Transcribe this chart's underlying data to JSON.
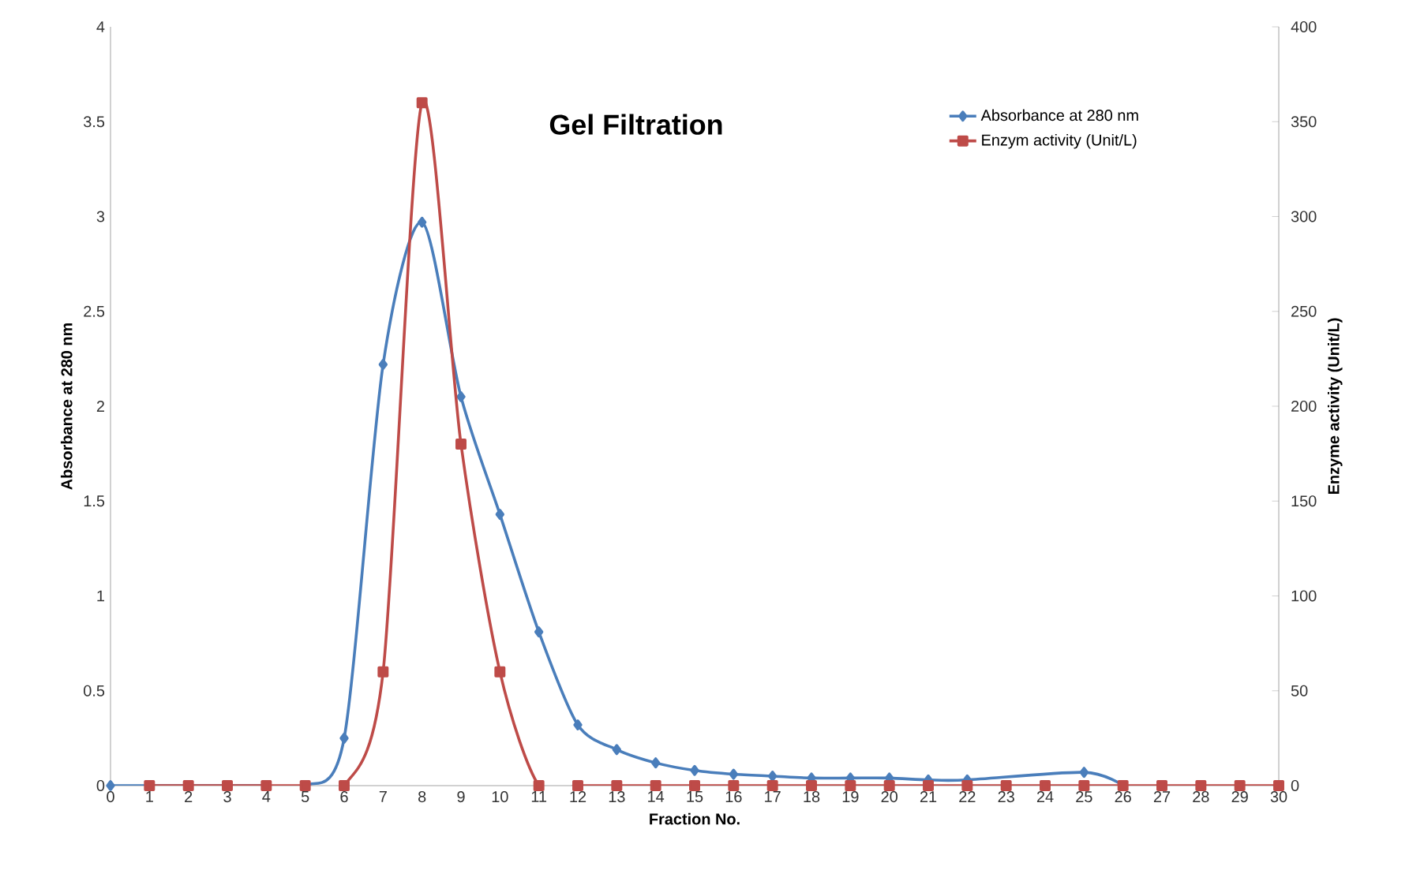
{
  "chart_data": {
    "type": "line",
    "title": "Gel Filtration",
    "xlabel": "Fraction No.",
    "ylabel": "Absorbance  at 280 nm",
    "y2label": "Enzyme activity (Unit/L)",
    "xlim": [
      0,
      30
    ],
    "xticks": [
      0,
      1,
      2,
      3,
      4,
      5,
      6,
      7,
      8,
      9,
      10,
      11,
      12,
      13,
      14,
      15,
      16,
      17,
      18,
      19,
      20,
      21,
      22,
      23,
      24,
      25,
      26,
      27,
      28,
      29,
      30
    ],
    "ylim": [
      0,
      4
    ],
    "yticks": [
      0,
      0.5,
      1,
      1.5,
      2,
      2.5,
      3,
      3.5,
      4
    ],
    "y2lim": [
      0,
      400
    ],
    "y2ticks": [
      0,
      50,
      100,
      150,
      200,
      250,
      300,
      350,
      400
    ],
    "grid": false,
    "legend": "top right",
    "series": [
      {
        "name": "Absorbance  at 280 nm",
        "color": "#4a7ebb",
        "marker": "diamond",
        "x": [
          0,
          1,
          2,
          3,
          4,
          5,
          6,
          7,
          8,
          9,
          10,
          11,
          12,
          13,
          14,
          15,
          16,
          17,
          18,
          19,
          20,
          21,
          22,
          23,
          24,
          25,
          26
        ],
        "values": [
          0,
          0,
          0,
          0,
          0,
          0,
          0.25,
          2.22,
          2.97,
          2.05,
          1.43,
          0.81,
          0.32,
          0.19,
          0.12,
          0.08,
          0.06,
          0.05,
          0.04,
          0.04,
          0.04,
          0.03,
          0.03,
          null,
          null,
          0.07,
          0
        ]
      },
      {
        "name": "Enzym activity (Unit/L)",
        "color": "#be4b48",
        "marker": "square",
        "axis": "y2",
        "x": [
          1,
          2,
          3,
          4,
          5,
          6,
          7,
          8,
          9,
          10,
          11,
          12,
          13,
          14,
          15,
          16,
          17,
          18,
          19,
          20,
          21,
          22,
          23,
          24,
          25,
          26,
          27,
          28,
          29,
          30
        ],
        "values": [
          0,
          0,
          0,
          0,
          0,
          0,
          60,
          360,
          180,
          60,
          0,
          0,
          0,
          0,
          0,
          0,
          0,
          0,
          0,
          0,
          0,
          0,
          0,
          0,
          0,
          0,
          0,
          0,
          0,
          0
        ]
      }
    ]
  }
}
